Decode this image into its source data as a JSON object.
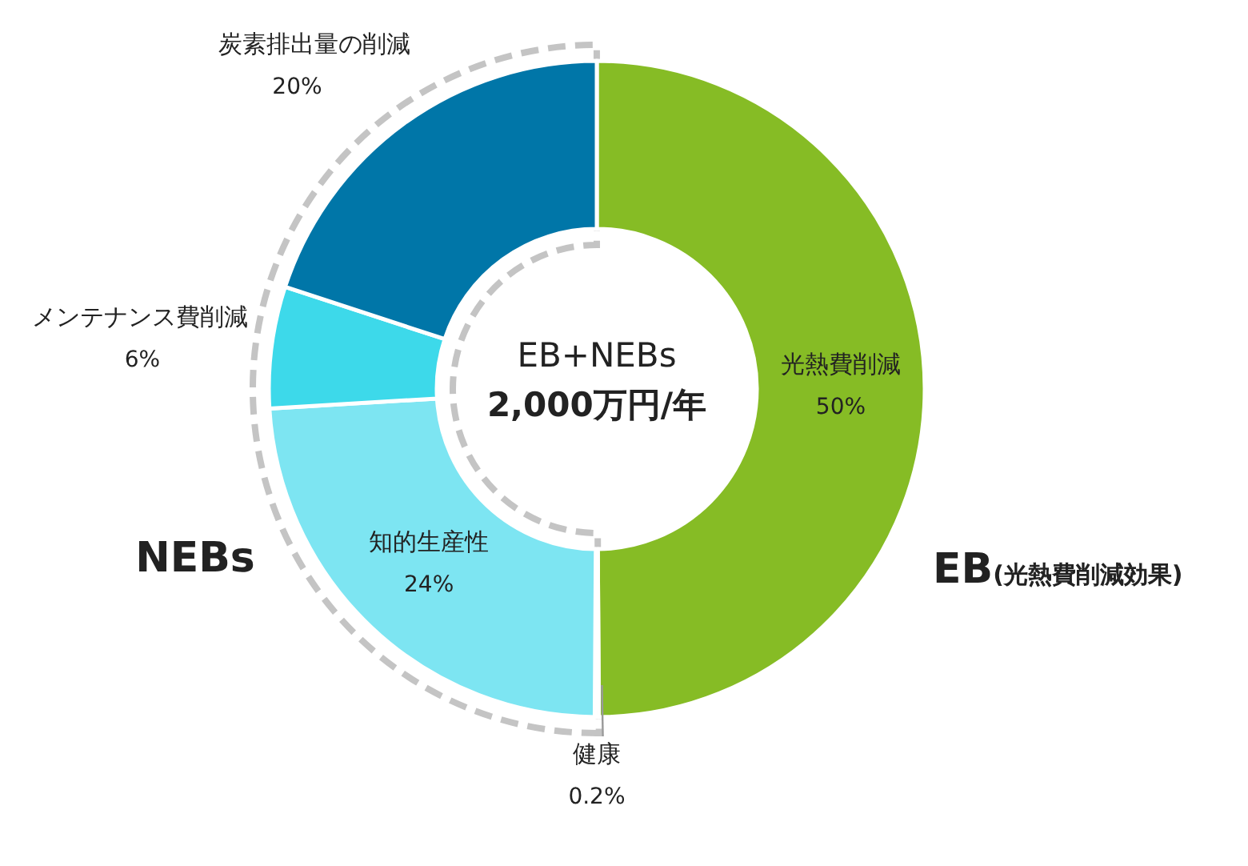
{
  "chart_data": {
    "type": "donut",
    "title": "EB+NEBs",
    "subtitle": "2,000万円/年",
    "categories": [
      "光熱費削減",
      "健康",
      "知的生産性",
      "メンテナンス費削減",
      "炭素排出量の削減"
    ],
    "values": [
      50,
      0.2,
      24,
      6,
      20
    ],
    "colors": [
      "#86bc25",
      "#b0b0b0",
      "#7de5f2",
      "#3dd9ea",
      "#0076a8"
    ],
    "value_labels": [
      "50%",
      "0.2%",
      "24%",
      "6%",
      "20%"
    ],
    "annotations": [
      "NEBs",
      "EB",
      "(光熱費削減効果)"
    ]
  }
}
